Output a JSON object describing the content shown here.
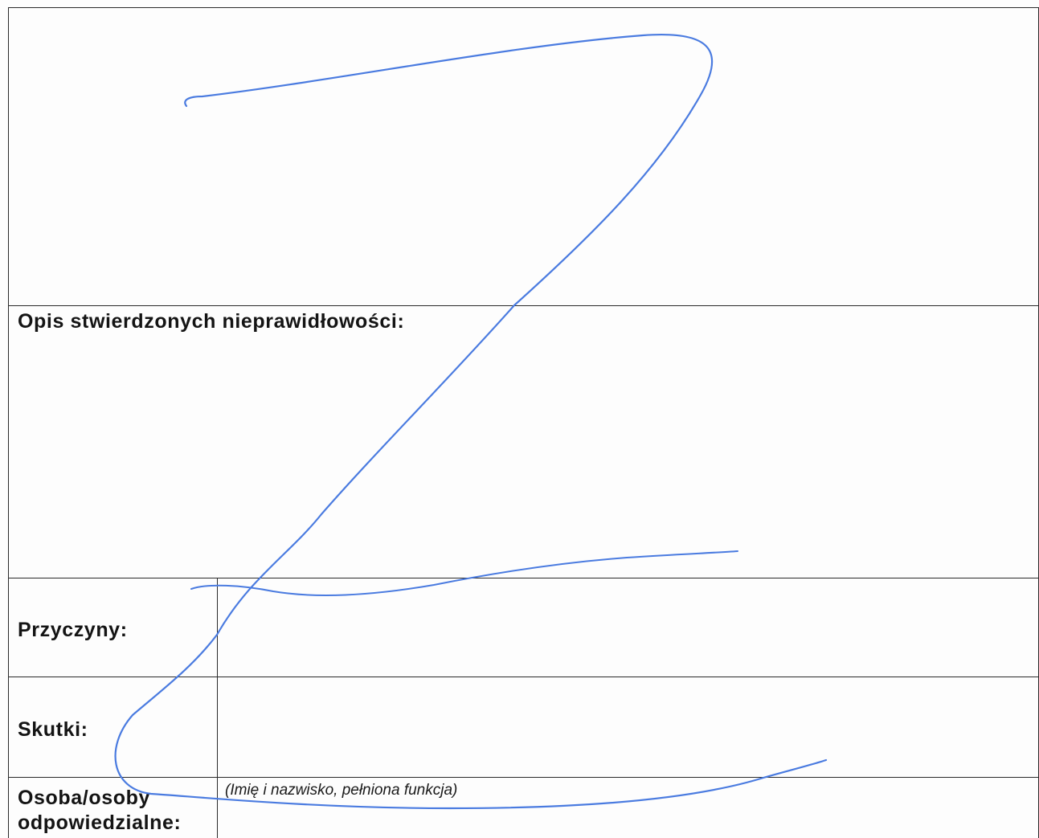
{
  "form": {
    "sections": {
      "description": {
        "label": "Opis stwierdzonych nieprawidłowości:"
      },
      "causes": {
        "label": "Przyczyny:"
      },
      "effects": {
        "label": "Skutki:"
      },
      "responsible": {
        "label_line1": "Osoba/osoby",
        "label_line2": "odpowiedzialne:",
        "hint": "(Imię i nazwisko, pełniona funkcja)"
      }
    },
    "colors": {
      "ink": "#4a7be0",
      "rule": "#2a2a2a"
    }
  }
}
